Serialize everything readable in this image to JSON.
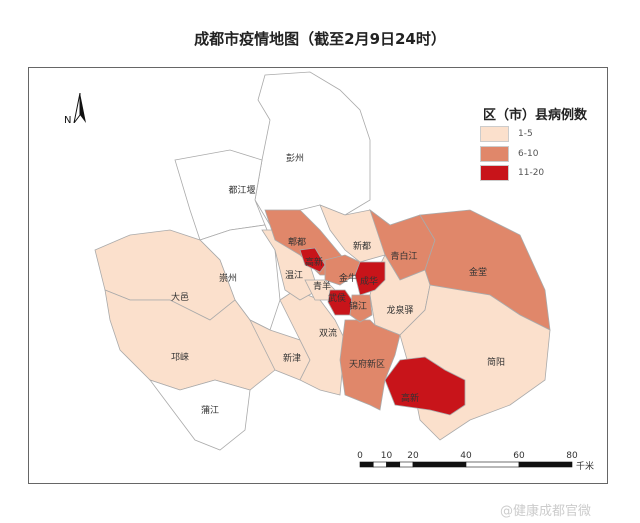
{
  "title": "成都市疫情地图（截至2月9日24时）",
  "legend": {
    "title": "区（市）县病例数",
    "items": [
      {
        "label": "1-5",
        "color": "#fbe0cc"
      },
      {
        "label": "6-10",
        "color": "#e0876a"
      },
      {
        "label": "11-20",
        "color": "#c8141a"
      }
    ]
  },
  "districts": [
    {
      "name": "彭州",
      "cases": "0",
      "color": "#ffffff"
    },
    {
      "name": "都江堰",
      "cases": "0",
      "color": "#ffffff"
    },
    {
      "name": "崇州",
      "cases": "0",
      "color": "#ffffff"
    },
    {
      "name": "大邑",
      "cases": "1-5",
      "color": "#fbe0cc"
    },
    {
      "name": "邛崃",
      "cases": "1-5",
      "color": "#fbe0cc"
    },
    {
      "name": "蒲江",
      "cases": "0",
      "color": "#ffffff"
    },
    {
      "name": "新津",
      "cases": "1-5",
      "color": "#fbe0cc"
    },
    {
      "name": "双流",
      "cases": "1-5",
      "color": "#fbe0cc"
    },
    {
      "name": "温江",
      "cases": "1-5",
      "color": "#fbe0cc"
    },
    {
      "name": "郫都",
      "cases": "6-10",
      "color": "#e0876a"
    },
    {
      "name": "新都",
      "cases": "1-5",
      "color": "#fbe0cc"
    },
    {
      "name": "青白江",
      "cases": "6-10",
      "color": "#e0876a"
    },
    {
      "name": "金堂",
      "cases": "6-10",
      "color": "#e0876a"
    },
    {
      "name": "龙泉驿",
      "cases": "1-5",
      "color": "#fbe0cc"
    },
    {
      "name": "简阳",
      "cases": "1-5",
      "color": "#fbe0cc"
    },
    {
      "name": "天府新区",
      "cases": "6-10",
      "color": "#e0876a"
    },
    {
      "name": "金牛",
      "cases": "6-10",
      "color": "#e0876a"
    },
    {
      "name": "青羊",
      "cases": "1-5",
      "color": "#fbe0cc"
    },
    {
      "name": "成华",
      "cases": "11-20",
      "color": "#c8141a"
    },
    {
      "name": "武侯",
      "cases": "11-20",
      "color": "#c8141a"
    },
    {
      "name": "锦江",
      "cases": "6-10",
      "color": "#e0876a"
    },
    {
      "name": "高新",
      "cases": "11-20",
      "color": "#c8141a"
    },
    {
      "name": "高新",
      "cases": "11-20",
      "color": "#c8141a"
    }
  ],
  "north_label": "N",
  "scale": {
    "ticks": [
      "0",
      "10",
      "20",
      "40",
      "60",
      "80"
    ],
    "unit": "千米"
  },
  "watermark": "@健康成都官微"
}
